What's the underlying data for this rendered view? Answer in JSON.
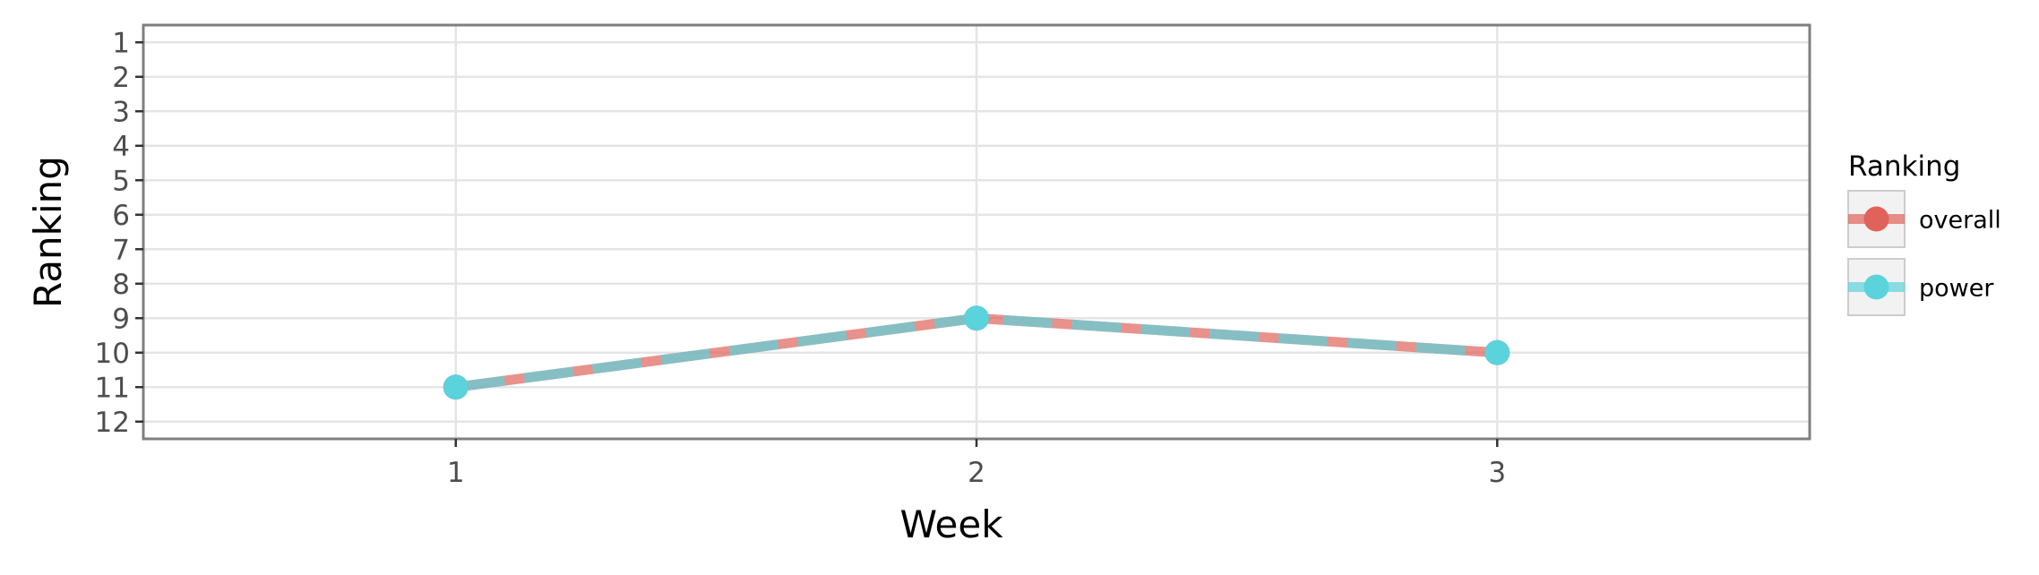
{
  "chart_data": {
    "type": "line",
    "title": "",
    "xlabel": "Week",
    "ylabel": "Ranking",
    "x": [
      1,
      2,
      3
    ],
    "xlim": [
      0.4,
      3.6
    ],
    "ylim": [
      12.5,
      0.5
    ],
    "y_reversed": true,
    "x_ticks": [
      "1",
      "2",
      "3"
    ],
    "y_ticks": [
      "1",
      "2",
      "3",
      "4",
      "5",
      "6",
      "7",
      "8",
      "9",
      "10",
      "11",
      "12"
    ],
    "grid": true,
    "legend": {
      "title": "Ranking",
      "placement": "right"
    },
    "series": [
      {
        "name": "overall",
        "values": [
          11,
          9,
          10
        ],
        "color": "#E0625A",
        "line_style": "solid"
      },
      {
        "name": "power",
        "values": [
          11,
          9,
          10
        ],
        "color": "#5BD3DC",
        "line_style": "dashed"
      }
    ]
  }
}
